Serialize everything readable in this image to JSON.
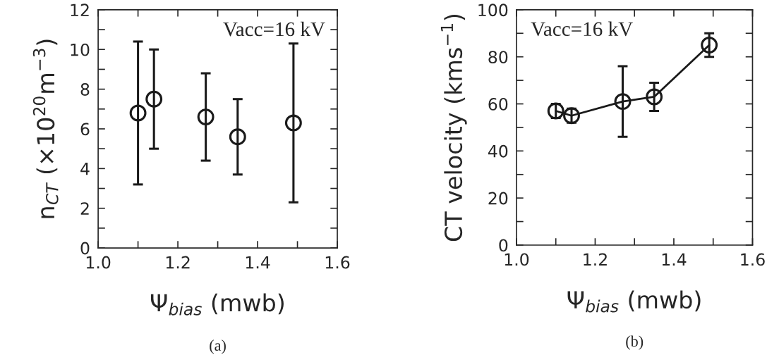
{
  "chart_data": [
    {
      "type": "scatter",
      "xlabel": "Ψ$_{bias}$ (mwb)",
      "ylabel": "n$_{CT}$ (×10$^{20}$m$^{−3}$)",
      "x": [
        1.1,
        1.14,
        1.27,
        1.35,
        1.49
      ],
      "series": [
        {
          "color": "#1a1a1a",
          "values": [
            6.8,
            7.5,
            6.6,
            5.6,
            6.3
          ],
          "errors": [
            [
              3.2,
              10.4
            ],
            [
              5.0,
              10.0
            ],
            [
              4.4,
              8.8
            ],
            [
              3.7,
              7.5
            ],
            [
              2.3,
              10.3
            ]
          ]
        }
      ],
      "marker": "circle",
      "xlim": [
        1.0,
        1.6
      ],
      "xticks": [
        {
          "value": 1.0,
          "label": "1.0"
        },
        {
          "value": 1.1,
          "label": null
        },
        {
          "value": 1.2,
          "label": "1.2"
        },
        {
          "value": 1.3,
          "label": null
        },
        {
          "value": 1.4,
          "label": "1.4"
        },
        {
          "value": 1.5,
          "label": null
        },
        {
          "value": 1.6,
          "label": "1.6"
        }
      ],
      "ylim": [
        0,
        12
      ],
      "yticks": [
        0,
        {
          "value": 1,
          "label": null
        },
        2,
        {
          "value": 3,
          "label": null
        },
        4,
        {
          "value": 5,
          "label": null
        },
        6,
        {
          "value": 7,
          "label": null
        },
        8,
        {
          "value": 9,
          "label": null
        },
        10,
        {
          "value": 11,
          "label": null
        },
        12
      ],
      "annotations": [
        "Vacc=16 kV",
        "(a)"
      ]
    },
    {
      "type": "line",
      "xlabel": "Ψ$_{bias}$ (mwb)",
      "ylabel": "CT velocity (kms$^{−1}$)",
      "x": [
        1.1,
        1.14,
        1.27,
        1.35,
        1.49
      ],
      "series": [
        {
          "color": "#1a1a1a",
          "values": [
            57,
            55,
            61,
            63,
            85
          ],
          "errors": [
            [
              54,
              60
            ],
            [
              52,
              58
            ],
            [
              46,
              76
            ],
            [
              57,
              69
            ],
            [
              80,
              90
            ]
          ]
        }
      ],
      "marker": "circle",
      "line_style": "solid",
      "xlim": [
        1.0,
        1.6
      ],
      "xticks": [
        {
          "value": 1.0,
          "label": "1.0"
        },
        {
          "value": 1.1,
          "label": null
        },
        {
          "value": 1.2,
          "label": "1.2"
        },
        {
          "value": 1.3,
          "label": null
        },
        {
          "value": 1.4,
          "label": "1.4"
        },
        {
          "value": 1.5,
          "label": null
        },
        {
          "value": 1.6,
          "label": "1.6"
        }
      ],
      "ylim": [
        0,
        100
      ],
      "yticks": [
        0,
        {
          "value": 10,
          "label": null
        },
        20,
        {
          "value": 30,
          "label": null
        },
        40,
        {
          "value": 50,
          "label": null
        },
        60,
        {
          "value": 70,
          "label": null
        },
        80,
        {
          "value": 90,
          "label": null
        },
        100
      ],
      "annotations": [
        "Vacc=16 kV",
        "(b)"
      ]
    }
  ]
}
